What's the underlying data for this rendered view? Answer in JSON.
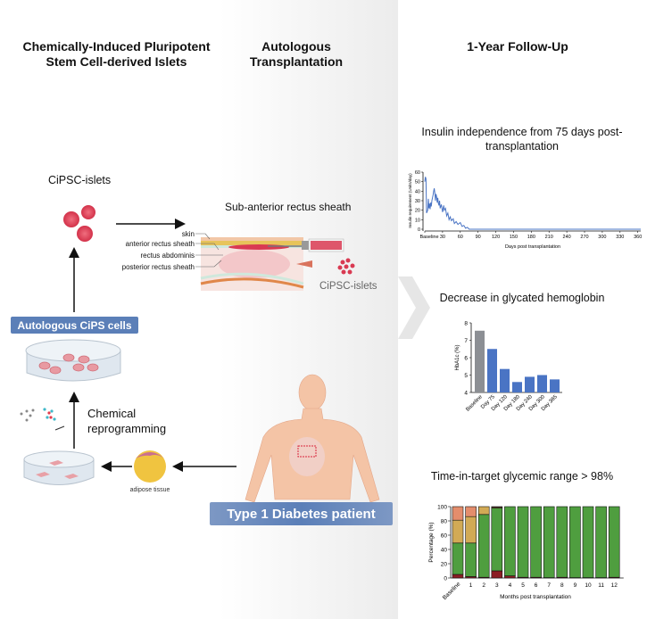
{
  "left": {
    "title_cipsc": "Chemically-Induced Pluripotent Stem Cell-derived Islets",
    "title_transplant": "Autologous Transplantation",
    "cipsc_islets_label": "CiPSC-islets",
    "site_title": "Sub-anterior rectus sheath",
    "tissue_labels": [
      "skin",
      "anterior rectus sheath",
      "rectus abdominis",
      "posterior rectus sheath"
    ],
    "islets_tag": "CiPSC-islets",
    "cips_cells_badge": "Autologous CiPS cells",
    "reprogramming_label": "Chemical reprogramming",
    "adipose_label": "adipose tissue",
    "patient_badge": "Type 1 Diabetes patient"
  },
  "right": {
    "title": "1-Year Follow-Up",
    "insulin_heading": "Insulin independence from 75 days post-transplantation",
    "hba1c_heading": "Decrease in glycated hemoglobin",
    "tir_heading": "Time-in-target glycemic range > 98%"
  },
  "colors": {
    "badge_blue": "#5b7fb8",
    "line_blue": "#4a74c4",
    "bar_grey": "#8c8f94",
    "bar_blue": "#4a74c4",
    "tir_very_low": "#8b1e24",
    "tir_in_range": "#4f9e3f",
    "tir_high": "#d2aa55",
    "tir_very_high": "#e48d6c"
  },
  "chart_data": [
    {
      "type": "line",
      "xlabel": "Days post transplantation",
      "ylabel": "Insulin requirement (Units/day)",
      "xlim": [
        0,
        365
      ],
      "ylim": [
        0,
        60
      ],
      "xticks": [
        "Baseline",
        "30",
        "60",
        "90",
        "120",
        "150",
        "180",
        "210",
        "240",
        "270",
        "300",
        "330",
        "360"
      ],
      "yticks": [
        "0",
        "10",
        "20",
        "30",
        "40",
        "50",
        "60"
      ],
      "x": [
        0,
        1,
        2,
        3,
        5,
        6,
        7,
        8,
        9,
        10,
        11,
        12,
        13,
        14,
        15,
        16,
        17,
        18,
        19,
        20,
        21,
        22,
        23,
        24,
        25,
        26,
        28,
        30,
        32,
        33,
        35,
        37,
        39,
        41,
        43,
        45,
        48,
        50,
        53,
        56,
        60,
        63,
        66,
        69,
        72,
        75,
        90,
        120,
        180,
        240,
        300,
        365
      ],
      "y": [
        50,
        55,
        53,
        17,
        20,
        32,
        22,
        27,
        21,
        28,
        24,
        30,
        33,
        36,
        40,
        43,
        38,
        30,
        37,
        34,
        28,
        33,
        27,
        25,
        30,
        22,
        26,
        18,
        25,
        20,
        22,
        14,
        17,
        10,
        13,
        9,
        11,
        6,
        8,
        5,
        7,
        3,
        4,
        1,
        2,
        0,
        0,
        0,
        0,
        0,
        0,
        0
      ]
    },
    {
      "type": "bar",
      "ylabel": "HbA1c (%)",
      "categories": [
        "Baseline",
        "Day 75",
        "Day 120",
        "Day 180",
        "Day 240",
        "Day 300",
        "Day 365"
      ],
      "values": [
        7.55,
        6.5,
        5.35,
        4.6,
        4.9,
        5.0,
        4.75
      ],
      "ylim": [
        4,
        8
      ],
      "yticks": [
        "4",
        "5",
        "6",
        "7",
        "8"
      ]
    },
    {
      "type": "bar",
      "stacked": true,
      "xlabel": "Months post transplantation",
      "ylabel": "Percentage (%)",
      "categories": [
        "Baseline",
        "1",
        "2",
        "3",
        "4",
        "5",
        "6",
        "7",
        "8",
        "9",
        "10",
        "11",
        "12"
      ],
      "ylim": [
        0,
        100
      ],
      "yticks": [
        "0",
        "20",
        "40",
        "60",
        "80",
        "100"
      ],
      "series": [
        {
          "values": [
            5,
            2,
            1,
            10,
            3,
            1,
            1,
            0.5,
            1,
            0.5,
            0.5,
            0.5,
            1
          ]
        },
        {
          "values": [
            44,
            47,
            88,
            88,
            97,
            99,
            99,
            99.5,
            99,
            99.5,
            99.5,
            99.5,
            99
          ]
        },
        {
          "values": [
            32,
            37,
            11,
            1,
            0,
            0,
            0,
            0,
            0,
            0,
            0,
            0,
            0
          ]
        },
        {
          "values": [
            19,
            14,
            0,
            1,
            0,
            0,
            0,
            0,
            0,
            0,
            0,
            0,
            0
          ]
        }
      ]
    }
  ]
}
